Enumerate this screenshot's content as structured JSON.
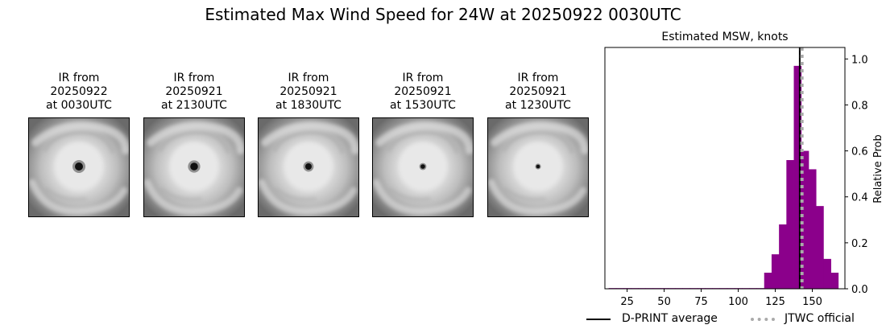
{
  "figure": {
    "title": "Estimated Max Wind Speed for 24W at 20250922 0030UTC"
  },
  "ir_panels": [
    {
      "line1": "IR from",
      "line2": "20250922",
      "line3": "at 0030UTC",
      "eye_size": 1.0
    },
    {
      "line1": "IR from",
      "line2": "20250921",
      "line3": "at 2130UTC",
      "eye_size": 0.95
    },
    {
      "line1": "IR from",
      "line2": "20250921",
      "line3": "at 1830UTC",
      "eye_size": 0.8
    },
    {
      "line1": "IR from",
      "line2": "20250921",
      "line3": "at 1530UTC",
      "eye_size": 0.55
    },
    {
      "line1": "IR from",
      "line2": "20250921",
      "line3": "at 1230UTC",
      "eye_size": 0.45
    }
  ],
  "chart_data": {
    "type": "bar",
    "title": "Estimated MSW, knots",
    "xlabel": "",
    "ylabel": "Relative Prob",
    "xlim": [
      10,
      172
    ],
    "ylim": [
      0,
      1.05
    ],
    "xticks": [
      25,
      50,
      75,
      100,
      125,
      150
    ],
    "yticks": [
      "0.0",
      "0.2",
      "0.4",
      "0.6",
      "0.8",
      "1.0"
    ],
    "bar_color": "#8b008b",
    "bin_width": 5,
    "bins": [
      {
        "x": 15,
        "y": 0.003
      },
      {
        "x": 20,
        "y": 0.003
      },
      {
        "x": 25,
        "y": 0.003
      },
      {
        "x": 30,
        "y": 0.003
      },
      {
        "x": 35,
        "y": 0.003
      },
      {
        "x": 40,
        "y": 0.003
      },
      {
        "x": 45,
        "y": 0.003
      },
      {
        "x": 50,
        "y": 0.003
      },
      {
        "x": 55,
        "y": 0.003
      },
      {
        "x": 60,
        "y": 0.003
      },
      {
        "x": 65,
        "y": 0.003
      },
      {
        "x": 70,
        "y": 0.003
      },
      {
        "x": 75,
        "y": 0.003
      },
      {
        "x": 80,
        "y": 0.003
      },
      {
        "x": 85,
        "y": 0.003
      },
      {
        "x": 90,
        "y": 0.003
      },
      {
        "x": 95,
        "y": 0.003
      },
      {
        "x": 100,
        "y": 0.003
      },
      {
        "x": 105,
        "y": 0.003
      },
      {
        "x": 110,
        "y": 0.003
      },
      {
        "x": 115,
        "y": 0.003
      },
      {
        "x": 120,
        "y": 0.07
      },
      {
        "x": 125,
        "y": 0.15
      },
      {
        "x": 130,
        "y": 0.28
      },
      {
        "x": 135,
        "y": 0.56
      },
      {
        "x": 140,
        "y": 0.97
      },
      {
        "x": 145,
        "y": 0.6
      },
      {
        "x": 150,
        "y": 0.52
      },
      {
        "x": 155,
        "y": 0.36
      },
      {
        "x": 160,
        "y": 0.13
      },
      {
        "x": 165,
        "y": 0.07
      }
    ],
    "dprint_average": 141.5,
    "jtwc_official": 143,
    "legend": {
      "position": "bottom",
      "dprint_label": "D-PRINT average",
      "jtwc_label": "JTWC official",
      "dprint_color": "#000000",
      "jtwc_color": "#aaaaaa"
    }
  }
}
